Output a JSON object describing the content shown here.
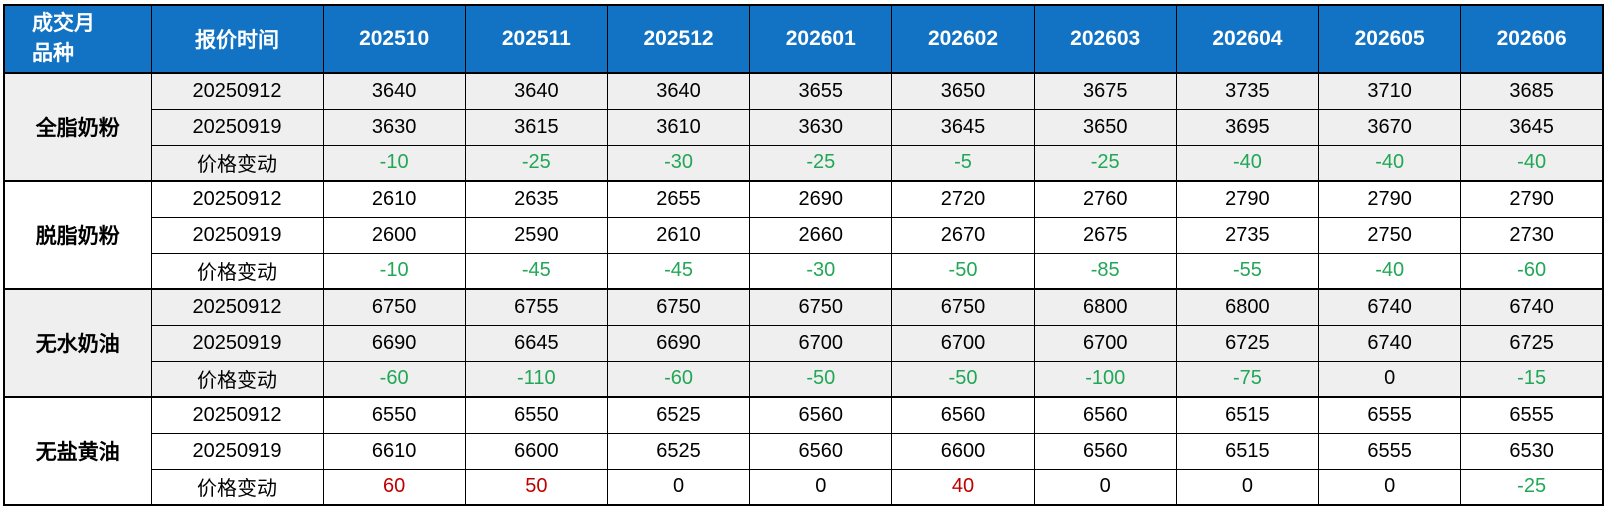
{
  "chart_data": {
    "type": "table",
    "corner_header_line1": "成交月",
    "corner_header_line2": "品种",
    "quote_time_header": "报价时间",
    "months": [
      "202510",
      "202511",
      "202512",
      "202601",
      "202602",
      "202603",
      "202604",
      "202605",
      "202606"
    ],
    "change_row_label": "价格变动",
    "groups": [
      {
        "product": "全脂奶粉",
        "rows": [
          {
            "label": "20250912",
            "values": [
              "3640",
              "3640",
              "3640",
              "3655",
              "3650",
              "3675",
              "3735",
              "3710",
              "3685"
            ]
          },
          {
            "label": "20250919",
            "values": [
              "3630",
              "3615",
              "3610",
              "3630",
              "3645",
              "3650",
              "3695",
              "3670",
              "3645"
            ]
          },
          {
            "label": "价格变动",
            "values": [
              "-10",
              "-25",
              "-30",
              "-25",
              "-5",
              "-25",
              "-40",
              "-40",
              "-40"
            ]
          }
        ]
      },
      {
        "product": "脱脂奶粉",
        "rows": [
          {
            "label": "20250912",
            "values": [
              "2610",
              "2635",
              "2655",
              "2690",
              "2720",
              "2760",
              "2790",
              "2790",
              "2790"
            ]
          },
          {
            "label": "20250919",
            "values": [
              "2600",
              "2590",
              "2610",
              "2660",
              "2670",
              "2675",
              "2735",
              "2750",
              "2730"
            ]
          },
          {
            "label": "价格变动",
            "values": [
              "-10",
              "-45",
              "-45",
              "-30",
              "-50",
              "-85",
              "-55",
              "-40",
              "-60"
            ]
          }
        ]
      },
      {
        "product": "无水奶油",
        "rows": [
          {
            "label": "20250912",
            "values": [
              "6750",
              "6755",
              "6750",
              "6750",
              "6750",
              "6800",
              "6800",
              "6740",
              "6740"
            ]
          },
          {
            "label": "20250919",
            "values": [
              "6690",
              "6645",
              "6690",
              "6700",
              "6700",
              "6700",
              "6725",
              "6740",
              "6725"
            ]
          },
          {
            "label": "价格变动",
            "values": [
              "-60",
              "-110",
              "-60",
              "-50",
              "-50",
              "-100",
              "-75",
              "0",
              "-15"
            ]
          }
        ]
      },
      {
        "product": "无盐黄油",
        "rows": [
          {
            "label": "20250912",
            "values": [
              "6550",
              "6550",
              "6525",
              "6560",
              "6560",
              "6560",
              "6515",
              "6555",
              "6555"
            ]
          },
          {
            "label": "20250919",
            "values": [
              "6610",
              "6600",
              "6525",
              "6560",
              "6600",
              "6560",
              "6515",
              "6555",
              "6530"
            ]
          },
          {
            "label": "价格变动",
            "values": [
              "60",
              "50",
              "0",
              "0",
              "40",
              "0",
              "0",
              "0",
              "-25"
            ]
          }
        ]
      }
    ],
    "colors": {
      "header_bg": "#1272C3",
      "header_text": "#FFFFFF",
      "band_gray": "#EFEFEF",
      "band_white": "#FFFFFF",
      "negative_green": "#21A755",
      "positive_red": "#C00000",
      "zero_black": "#000000",
      "border_black": "#000000"
    }
  }
}
